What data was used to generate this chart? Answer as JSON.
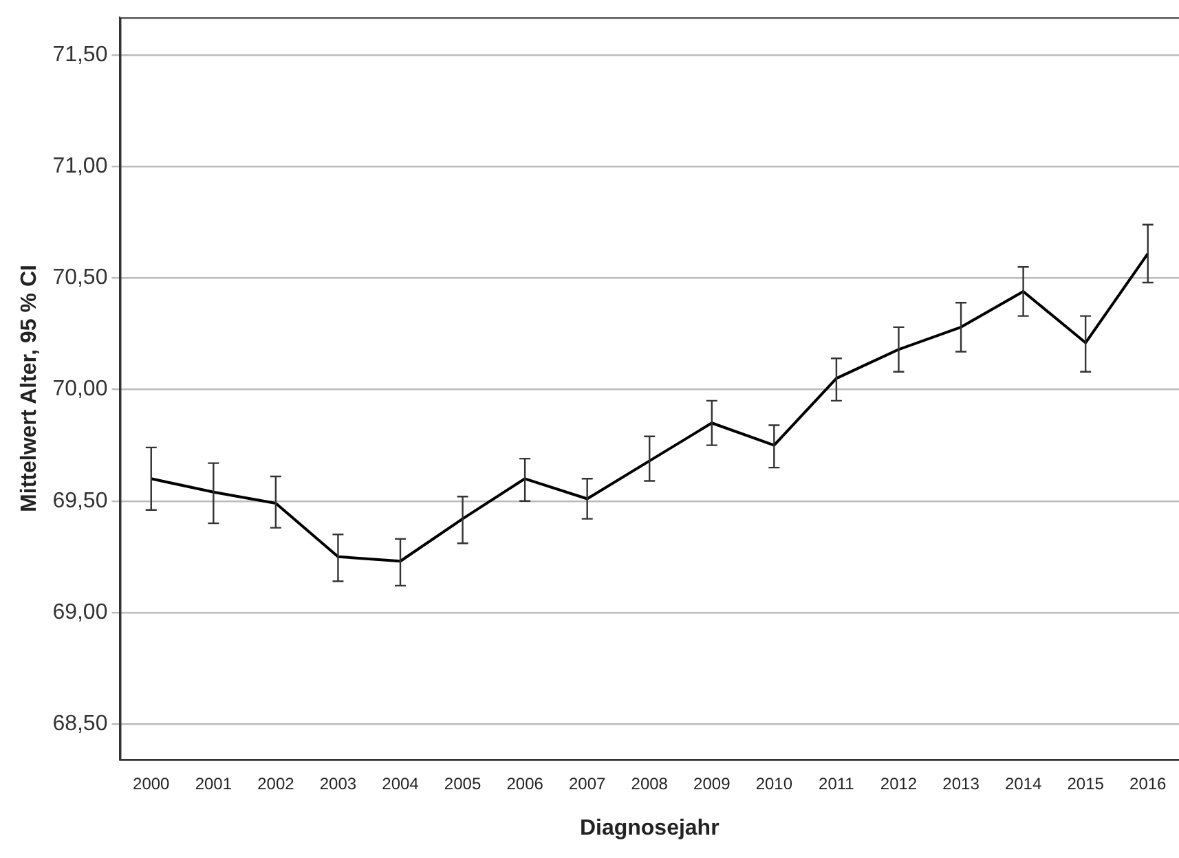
{
  "chart_data": {
    "type": "line",
    "xlabel": "Diagnosejahr",
    "ylabel": "Mittelwert Alter, 95 % CI",
    "categories": [
      "2000",
      "2001",
      "2002",
      "2003",
      "2004",
      "2005",
      "2006",
      "2007",
      "2008",
      "2009",
      "2010",
      "2011",
      "2012",
      "2013",
      "2014",
      "2015",
      "2016"
    ],
    "series": [
      {
        "color": "#000000",
        "values": [
          69.6,
          69.54,
          69.49,
          69.25,
          69.23,
          69.42,
          69.6,
          69.51,
          69.68,
          69.85,
          69.75,
          70.05,
          70.18,
          70.28,
          70.44,
          70.21,
          70.61
        ],
        "errors": [
          [
            69.46,
            69.74
          ],
          [
            69.4,
            69.67
          ],
          [
            69.38,
            69.61
          ],
          [
            69.14,
            69.35
          ],
          [
            69.12,
            69.33
          ],
          [
            69.31,
            69.52
          ],
          [
            69.5,
            69.69
          ],
          [
            69.42,
            69.6
          ],
          [
            69.59,
            69.79
          ],
          [
            69.75,
            69.95
          ],
          [
            69.65,
            69.84
          ],
          [
            69.95,
            70.14
          ],
          [
            70.08,
            70.28
          ],
          [
            70.17,
            70.39
          ],
          [
            70.33,
            70.55
          ],
          [
            70.08,
            70.33
          ],
          [
            70.48,
            70.74
          ]
        ]
      }
    ],
    "ylim": [
      68.34,
      71.67
    ],
    "yticks": [
      {
        "value": 68.5,
        "label": "68,50"
      },
      {
        "value": 69,
        "label": "69,00"
      },
      {
        "value": 69.5,
        "label": "69,50"
      },
      {
        "value": 70,
        "label": "70,00"
      },
      {
        "value": 70.5,
        "label": "70,50"
      },
      {
        "value": 71,
        "label": "71,00"
      },
      {
        "value": 71.5,
        "label": "71,50"
      }
    ],
    "grid": "y",
    "legend": false,
    "marker": "none",
    "line_style": "solid"
  }
}
